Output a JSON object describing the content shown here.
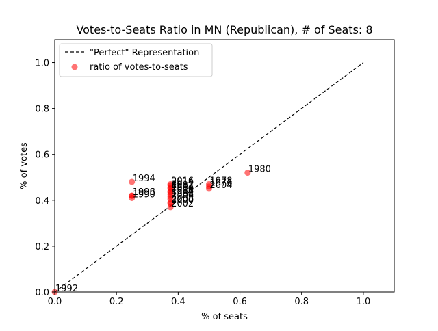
{
  "chart_data": {
    "type": "scatter",
    "title": "Votes-to-Seats Ratio in MN (Republican), # of Seats: 8",
    "xlabel": "% of seats",
    "ylabel": "% of votes",
    "xlim": [
      0,
      1.1
    ],
    "ylim": [
      0,
      1.1
    ],
    "xticks": [
      "0.0",
      "0.2",
      "0.4",
      "0.6",
      "0.8",
      "1.0"
    ],
    "yticks": [
      "0.0",
      "0.2",
      "0.4",
      "0.6",
      "0.8",
      "1.0"
    ],
    "grid": false,
    "legend": {
      "placement": "top-left",
      "entries": [
        {
          "label": "\"Perfect\" Representation",
          "kind": "dashed-line",
          "color": "#000000"
        },
        {
          "label": "ratio of votes-to-seats",
          "kind": "marker",
          "color": "#ff0000"
        }
      ]
    },
    "reference_line": {
      "x": [
        0,
        1.0
      ],
      "y": [
        0,
        1.0
      ],
      "style": "dashed",
      "color": "#000000"
    },
    "series": [
      {
        "name": "ratio of votes-to-seats",
        "color": "#ff0000",
        "points": [
          {
            "label": "1992",
            "x": 0.0,
            "y": 0.0
          },
          {
            "label": "1994",
            "x": 0.25,
            "y": 0.48
          },
          {
            "label": "1996",
            "x": 0.25,
            "y": 0.42
          },
          {
            "label": "1998",
            "x": 0.25,
            "y": 0.42
          },
          {
            "label": "1990",
            "x": 0.25,
            "y": 0.41
          },
          {
            "label": "2016",
            "x": 0.375,
            "y": 0.47
          },
          {
            "label": "2014",
            "x": 0.375,
            "y": 0.465
          },
          {
            "label": "2012",
            "x": 0.375,
            "y": 0.455
          },
          {
            "label": "1982",
            "x": 0.375,
            "y": 0.45
          },
          {
            "label": "1984",
            "x": 0.375,
            "y": 0.44
          },
          {
            "label": "2010",
            "x": 0.375,
            "y": 0.435
          },
          {
            "label": "1986",
            "x": 0.375,
            "y": 0.425
          },
          {
            "label": "1988",
            "x": 0.375,
            "y": 0.415
          },
          {
            "label": "2006",
            "x": 0.375,
            "y": 0.405
          },
          {
            "label": "2008",
            "x": 0.375,
            "y": 0.39
          },
          {
            "label": "2000",
            "x": 0.375,
            "y": 0.385
          },
          {
            "label": "2002",
            "x": 0.375,
            "y": 0.37
          },
          {
            "label": "1978",
            "x": 0.5,
            "y": 0.47
          },
          {
            "label": "1976",
            "x": 0.5,
            "y": 0.46
          },
          {
            "label": "2004",
            "x": 0.5,
            "y": 0.45
          },
          {
            "label": "1980",
            "x": 0.625,
            "y": 0.52
          }
        ]
      }
    ]
  }
}
